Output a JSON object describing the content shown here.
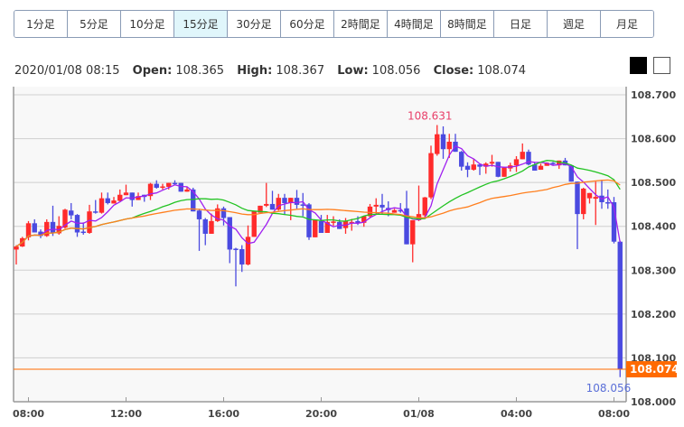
{
  "tabs": [
    {
      "label": "1分足"
    },
    {
      "label": "5分足"
    },
    {
      "label": "10分足"
    },
    {
      "label": "15分足",
      "active": true
    },
    {
      "label": "30分足"
    },
    {
      "label": "60分足"
    },
    {
      "label": "2時間足"
    },
    {
      "label": "4時間足"
    },
    {
      "label": "8時間足"
    },
    {
      "label": "日足"
    },
    {
      "label": "週足"
    },
    {
      "label": "月足"
    }
  ],
  "info": {
    "datetime": "2020/01/08 08:15",
    "open_label": "Open:",
    "open": "108.365",
    "high_label": "High:",
    "high": "108.367",
    "low_label": "Low:",
    "low": "108.056",
    "close_label": "Close:",
    "close": "108.074"
  },
  "theme_buttons": {
    "dark": "black-theme",
    "light": "white-theme"
  },
  "colors": {
    "up": "#ff2b2b",
    "down": "#4a4ae0",
    "ma_short": "#a020f0",
    "ma_mid": "#22c322",
    "ma_long": "#ff7f1e",
    "current": "#ff6a00",
    "high_label": "#e8406a",
    "low_label": "#5a6fd8"
  },
  "chart_data": {
    "type": "candlestick",
    "interval": "15分足",
    "ylim": [
      108.0,
      108.7
    ],
    "y_ticks": [
      "108.700",
      "108.600",
      "108.500",
      "108.400",
      "108.300",
      "108.200",
      "108.100",
      "108.000"
    ],
    "x_ticks": [
      {
        "index": 2,
        "label": "08:00"
      },
      {
        "index": 18,
        "label": "12:00"
      },
      {
        "index": 34,
        "label": "16:00"
      },
      {
        "index": 50,
        "label": "20:00"
      },
      {
        "index": 66,
        "label": "01/08"
      },
      {
        "index": 82,
        "label": "04:00"
      },
      {
        "index": 98,
        "label": "08:00"
      }
    ],
    "max_label": {
      "index": 69,
      "value": "108.631"
    },
    "min_label": {
      "index": 99,
      "value": "108.056"
    },
    "current_price": "108.074",
    "ohlc": [
      [
        108.347,
        108.357,
        108.313,
        108.354
      ],
      [
        108.354,
        108.376,
        108.353,
        108.373
      ],
      [
        108.375,
        108.412,
        108.368,
        108.407
      ],
      [
        108.407,
        108.416,
        108.386,
        108.386
      ],
      [
        108.388,
        108.393,
        108.373,
        108.378
      ],
      [
        108.378,
        108.416,
        108.376,
        108.41
      ],
      [
        108.41,
        108.447,
        108.378,
        108.386
      ],
      [
        108.384,
        108.423,
        108.381,
        108.401
      ],
      [
        108.397,
        108.44,
        108.395,
        108.438
      ],
      [
        108.436,
        108.453,
        108.416,
        108.425
      ],
      [
        108.426,
        108.428,
        108.376,
        108.386
      ],
      [
        108.388,
        108.409,
        108.381,
        108.385
      ],
      [
        108.385,
        108.449,
        108.383,
        108.434
      ],
      [
        108.434,
        108.46,
        108.429,
        108.431
      ],
      [
        108.431,
        108.477,
        108.429,
        108.464
      ],
      [
        108.464,
        108.477,
        108.45,
        108.453
      ],
      [
        108.452,
        108.467,
        108.452,
        108.459
      ],
      [
        108.458,
        108.484,
        108.457,
        108.472
      ],
      [
        108.471,
        108.495,
        108.471,
        108.477
      ],
      [
        108.477,
        108.477,
        108.445,
        108.46
      ],
      [
        108.46,
        108.477,
        108.46,
        108.469
      ],
      [
        108.472,
        108.472,
        108.456,
        108.467
      ],
      [
        108.469,
        108.499,
        108.46,
        108.497
      ],
      [
        108.497,
        108.505,
        108.486,
        108.488
      ],
      [
        108.488,
        108.497,
        108.484,
        108.491
      ],
      [
        108.49,
        108.499,
        108.484,
        108.499
      ],
      [
        108.499,
        108.505,
        108.495,
        108.498
      ],
      [
        108.499,
        108.499,
        108.479,
        108.479
      ],
      [
        108.479,
        108.49,
        108.479,
        108.484
      ],
      [
        108.484,
        108.488,
        108.434,
        108.434
      ],
      [
        108.436,
        108.44,
        108.344,
        108.416
      ],
      [
        108.416,
        108.419,
        108.357,
        108.383
      ],
      [
        108.383,
        108.429,
        108.383,
        108.412
      ],
      [
        108.412,
        108.45,
        108.41,
        108.441
      ],
      [
        108.441,
        108.445,
        108.402,
        108.419
      ],
      [
        108.421,
        108.421,
        108.316,
        108.347
      ],
      [
        108.349,
        108.351,
        108.263,
        108.348
      ],
      [
        108.348,
        108.357,
        108.296,
        108.313
      ],
      [
        108.313,
        108.402,
        108.311,
        108.376
      ],
      [
        108.376,
        108.435,
        108.376,
        108.435
      ],
      [
        108.431,
        108.447,
        108.431,
        108.447
      ],
      [
        108.447,
        108.499,
        108.444,
        108.451
      ],
      [
        108.451,
        108.481,
        108.438,
        108.438
      ],
      [
        108.438,
        108.474,
        108.436,
        108.465
      ],
      [
        108.465,
        108.474,
        108.426,
        108.453
      ],
      [
        108.453,
        108.465,
        108.414,
        108.465
      ],
      [
        108.465,
        108.483,
        108.44,
        108.449
      ],
      [
        108.45,
        108.476,
        108.423,
        108.449
      ],
      [
        108.45,
        108.453,
        108.369,
        108.375
      ],
      [
        108.375,
        108.414,
        108.375,
        108.414
      ],
      [
        108.412,
        108.426,
        108.385,
        108.385
      ],
      [
        108.385,
        108.426,
        108.385,
        108.41
      ],
      [
        108.41,
        108.423,
        108.401,
        108.411
      ],
      [
        108.41,
        108.416,
        108.394,
        108.394
      ],
      [
        108.396,
        108.419,
        108.383,
        108.412
      ],
      [
        108.41,
        108.417,
        108.39,
        108.41
      ],
      [
        108.412,
        108.423,
        108.403,
        108.408
      ],
      [
        108.408,
        108.423,
        108.399,
        108.423
      ],
      [
        108.423,
        108.451,
        108.419,
        108.445
      ],
      [
        108.445,
        108.464,
        108.426,
        108.449
      ],
      [
        108.449,
        108.474,
        108.428,
        108.443
      ],
      [
        108.442,
        108.457,
        108.423,
        108.437
      ],
      [
        108.431,
        108.44,
        108.431,
        108.437
      ],
      [
        108.437,
        108.453,
        108.431,
        108.436
      ],
      [
        108.441,
        108.481,
        108.359,
        108.359
      ],
      [
        108.359,
        108.414,
        108.318,
        108.414
      ],
      [
        108.414,
        108.493,
        108.412,
        108.428
      ],
      [
        108.425,
        108.467,
        108.421,
        108.466
      ],
      [
        108.466,
        108.584,
        108.462,
        108.567
      ],
      [
        108.565,
        108.631,
        108.561,
        108.61
      ],
      [
        108.61,
        108.628,
        108.554,
        108.576
      ],
      [
        108.576,
        108.611,
        108.556,
        108.593
      ],
      [
        108.593,
        108.611,
        108.57,
        108.57
      ],
      [
        108.57,
        108.572,
        108.527,
        108.536
      ],
      [
        108.538,
        108.546,
        108.512,
        108.529
      ],
      [
        108.529,
        108.553,
        108.527,
        108.541
      ],
      [
        108.541,
        108.541,
        108.517,
        108.536
      ],
      [
        108.536,
        108.546,
        108.52,
        108.543
      ],
      [
        108.543,
        108.563,
        108.536,
        108.547
      ],
      [
        108.547,
        108.547,
        108.512,
        108.513
      ],
      [
        108.513,
        108.536,
        108.513,
        108.534
      ],
      [
        108.532,
        108.545,
        108.525,
        108.539
      ],
      [
        108.539,
        108.56,
        108.524,
        108.553
      ],
      [
        108.553,
        108.589,
        108.553,
        108.57
      ],
      [
        108.57,
        108.575,
        108.539,
        108.541
      ],
      [
        108.541,
        108.546,
        108.527,
        108.527
      ],
      [
        108.529,
        108.543,
        108.529,
        108.538
      ],
      [
        108.538,
        108.546,
        108.538,
        108.545
      ],
      [
        108.545,
        108.547,
        108.539,
        108.544
      ],
      [
        108.539,
        108.55,
        108.531,
        108.55
      ],
      [
        108.55,
        108.556,
        108.539,
        108.539
      ],
      [
        108.539,
        108.539,
        108.502,
        108.502
      ],
      [
        108.502,
        108.502,
        108.348,
        108.428
      ],
      [
        108.428,
        108.488,
        108.416,
        108.486
      ],
      [
        108.464,
        108.476,
        108.452,
        108.476
      ],
      [
        108.463,
        108.502,
        108.403,
        108.467
      ],
      [
        108.47,
        108.506,
        108.44,
        108.455
      ],
      [
        108.455,
        108.484,
        108.44,
        108.453
      ],
      [
        108.455,
        108.467,
        108.361,
        108.365
      ],
      [
        108.365,
        108.367,
        108.056,
        108.074
      ]
    ]
  }
}
